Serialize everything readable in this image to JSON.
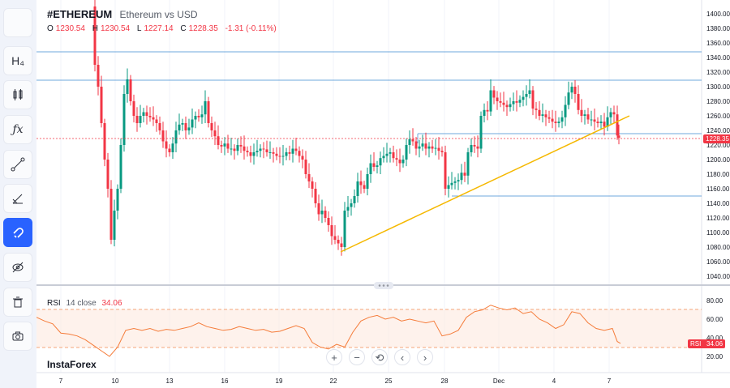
{
  "header": {
    "symbol": "#ETHEREUM",
    "name": "Ethereum vs USD",
    "ohlc": {
      "o_label": "O",
      "o": "1230.54",
      "h_label": "H",
      "h": "1230.54",
      "l_label": "L",
      "l": "1227.14",
      "c_label": "C",
      "c": "1228.35",
      "change": "-1.31 (-0.11%)"
    }
  },
  "toolbar": [
    {
      "name": "blank-tool",
      "icon": ""
    },
    {
      "name": "candle-type-tool",
      "icon": "H₄"
    },
    {
      "name": "candles-tool",
      "icon": "candles-icon"
    },
    {
      "name": "indicators-tool",
      "icon": "fx"
    },
    {
      "name": "trendline-tool",
      "icon": "trendline-icon"
    },
    {
      "name": "fib-tool",
      "icon": "fib-icon"
    },
    {
      "name": "magnet-tool",
      "icon": "magnet-icon",
      "active": true
    },
    {
      "name": "hide-tool",
      "icon": "eye-off-icon"
    },
    {
      "name": "trash-tool",
      "icon": "trash-icon"
    },
    {
      "name": "snapshot-tool",
      "icon": "camera-icon"
    }
  ],
  "price_axis": {
    "ticks": [
      "1400.00",
      "1380.00",
      "1360.00",
      "1340.00",
      "1320.00",
      "1300.00",
      "1280.00",
      "1260.00",
      "1240.00",
      "1220.00",
      "1200.00",
      "1180.00",
      "1160.00",
      "1140.00",
      "1120.00",
      "1100.00",
      "1080.00",
      "1060.00",
      "1040.00"
    ],
    "current_price": "1228.35"
  },
  "rsi": {
    "title": "RSI",
    "length": "14",
    "source": "close",
    "value": "34.06",
    "axis_ticks": [
      "80.00",
      "60.00",
      "40.00",
      "20.00"
    ],
    "tag_label": "RSI",
    "tag_value": "34.06"
  },
  "time_axis": {
    "ticks": [
      "7",
      "10",
      "13",
      "16",
      "19",
      "22",
      "25",
      "28",
      "Dec",
      "4",
      "7"
    ]
  },
  "zoom_controls": {
    "plus": "+",
    "minus": "−",
    "reset": "⟲",
    "left": "‹",
    "right": "›"
  },
  "watermark": "InstaForex",
  "colors": {
    "up": "#089981",
    "down": "#f23645",
    "trend": "#f5b800",
    "level": "#6fa8dc",
    "rsi": "#f57c3a",
    "active_tool": "#2962ff"
  },
  "chart_data": {
    "type": "candlestick",
    "series_price_range": [
      1040,
      1410
    ],
    "levels": [
      1348,
      1310,
      1236,
      1150
    ],
    "trendline": {
      "from": {
        "x": "22",
        "y": 1074
      },
      "to": {
        "x": "Dec 7",
        "y": 1260
      }
    }
  }
}
